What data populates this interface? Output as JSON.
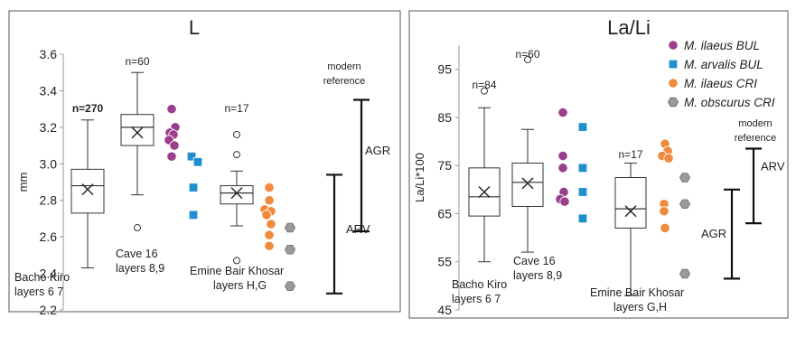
{
  "chart_data": [
    {
      "type": "box",
      "title": "L",
      "ylabel": "mm",
      "ylim": [
        2.2,
        3.6
      ],
      "yticks": [
        "2.2",
        "2.4",
        "2.6",
        "2.8",
        "3.0",
        "3.2",
        "3.4",
        "3.6"
      ],
      "grid": false,
      "boxes": [
        {
          "n_label": "n=270",
          "x": 0,
          "whisker_low": 2.43,
          "q1": 2.73,
          "median": 2.88,
          "q3": 2.97,
          "whisker_high": 3.24,
          "mean": 2.86,
          "outliers": [],
          "label_lines": [
            "Bacho Kiro",
            "layers 6   7"
          ]
        },
        {
          "n_label": "n=60",
          "x": 1,
          "whisker_low": 2.83,
          "q1": 3.1,
          "median": 3.2,
          "q3": 3.27,
          "whisker_high": 3.5,
          "mean": 3.17,
          "outliers": [
            2.65
          ],
          "label_lines": [
            "Cave 16",
            "layers 8,9"
          ]
        },
        {
          "n_label": "n=17",
          "x": 2,
          "whisker_low": 2.66,
          "q1": 2.78,
          "median": 2.84,
          "q3": 2.88,
          "whisker_high": 2.96,
          "mean": 2.84,
          "outliers": [
            3.16,
            3.05,
            2.47
          ],
          "label_lines": [
            "Emine Bair Khosar",
            "layers H,G"
          ]
        }
      ],
      "points": [
        {
          "series": "M. ilaeus BUL",
          "x": 1.6,
          "values": [
            3.3,
            3.2,
            3.17,
            3.16,
            3.13,
            3.1,
            3.04
          ]
        },
        {
          "series": "M. arvalis BUL",
          "x": 1.6,
          "values": [
            3.04,
            3.01,
            2.87,
            2.72
          ]
        },
        {
          "series": "M. ilaeus CRI",
          "x": 2.6,
          "values": [
            2.87,
            2.8,
            2.75,
            2.74,
            2.72,
            2.67,
            2.61,
            2.55
          ]
        },
        {
          "series": "M. obscurus CRI",
          "x": 2.85,
          "values": [
            2.65,
            2.53,
            2.33
          ]
        }
      ],
      "ranges": [
        {
          "label": "ARV",
          "low": 2.29,
          "high": 2.94
        },
        {
          "label": "AGR",
          "low": 2.63,
          "high": 3.35
        }
      ],
      "reference_label": [
        "modern",
        "reference"
      ]
    },
    {
      "type": "box",
      "title": "La/Li",
      "ylabel": "La/Li*100",
      "ylim": [
        45,
        100
      ],
      "yticks": [
        "45",
        "55",
        "65",
        "75",
        "85",
        "95"
      ],
      "grid": false,
      "boxes": [
        {
          "n_label": "n=84",
          "x": 0,
          "whisker_low": 55,
          "q1": 64.5,
          "median": 68.5,
          "q3": 74.5,
          "whisker_high": 87,
          "mean": 69.5,
          "outliers": [
            90.5
          ],
          "label_lines": [
            "Bacho Kiro",
            "layers 6   7"
          ]
        },
        {
          "n_label": "n=60",
          "x": 1,
          "whisker_low": 57,
          "q1": 66.5,
          "median": 71.5,
          "q3": 75.5,
          "whisker_high": 82.5,
          "mean": 71.3,
          "outliers": [
            97
          ],
          "label_lines": [
            "Cave 16",
            "layers 8,9"
          ]
        },
        {
          "n_label": "n=17",
          "x": 2,
          "whisker_low": 48,
          "q1": 62,
          "median": 66,
          "q3": 72.5,
          "whisker_high": 75.5,
          "mean": 65.5,
          "outliers": [],
          "label_lines": [
            "Emine Bair Khosar",
            "layers G,H"
          ]
        }
      ],
      "points": [
        {
          "series": "M. ilaeus BUL",
          "x": 1.6,
          "values": [
            86,
            77,
            74.5,
            69.5,
            68,
            67.5
          ]
        },
        {
          "series": "M. arvalis BUL",
          "x": 1.9,
          "values": [
            83,
            74.5,
            69.5,
            64
          ]
        },
        {
          "series": "M. ilaeus CRI",
          "x": 2.9,
          "values": [
            79.5,
            78,
            77,
            76.5,
            67,
            65.5,
            62
          ]
        },
        {
          "series": "M. obscurus CRI",
          "x": 3.2,
          "values": [
            72.5,
            67,
            52.5
          ]
        }
      ],
      "ranges": [
        {
          "label": "AGR",
          "low": 51.5,
          "high": 70
        },
        {
          "label": "ARV",
          "low": 63,
          "high": 78.5
        }
      ],
      "reference_label": [
        "modern",
        "reference"
      ]
    }
  ],
  "legend": {
    "placement": "top-right",
    "entries": [
      {
        "label": "M. ilaeus BUL",
        "shape": "circle",
        "color": "#9a3f8c"
      },
      {
        "label": "M. arvalis BUL",
        "shape": "square",
        "color": "#1f8fd0"
      },
      {
        "label": "M. ilaeus CRI",
        "shape": "circle",
        "color": "#f08a3c"
      },
      {
        "label": "M. obscurus CRI",
        "shape": "hexagon",
        "color": "#9a9a9a"
      }
    ]
  }
}
